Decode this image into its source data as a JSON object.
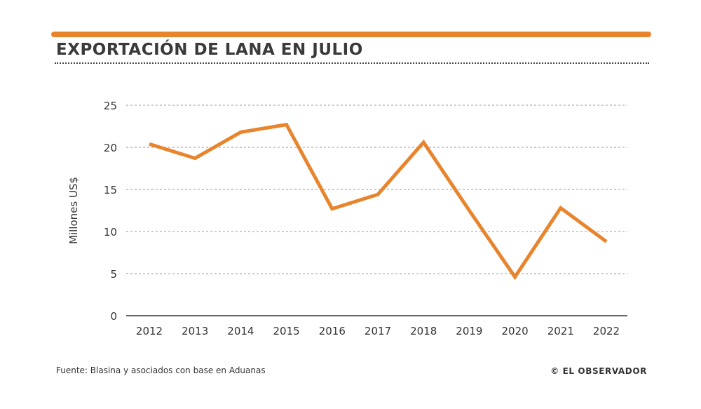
{
  "header": {
    "title": "EXPORTACIÓN DE LANA EN JULIO"
  },
  "footer": {
    "source": "Fuente: Blasina y asociados con base en Aduanas",
    "copyright": "© EL OBSERVADOR"
  },
  "colors": {
    "accent": "#e8842c",
    "text": "#333333",
    "grid": "#9a9a9a",
    "axis": "#666666"
  },
  "chart_data": {
    "type": "line",
    "title": "EXPORTACIÓN DE LANA EN JULIO",
    "xlabel": "",
    "ylabel": "Millones US$",
    "categories": [
      "2012",
      "2013",
      "2014",
      "2015",
      "2016",
      "2017",
      "2018",
      "2019",
      "2020",
      "2021",
      "2022"
    ],
    "series": [
      {
        "name": "Exportación de lana en julio",
        "values": [
          20.4,
          18.7,
          21.8,
          22.7,
          12.7,
          14.4,
          20.6,
          12.5,
          4.6,
          12.8,
          8.8
        ]
      }
    ],
    "ylim": [
      0,
      25
    ],
    "yticks": [
      0,
      5,
      10,
      15,
      20,
      25
    ],
    "grid": true,
    "legend": "none"
  }
}
